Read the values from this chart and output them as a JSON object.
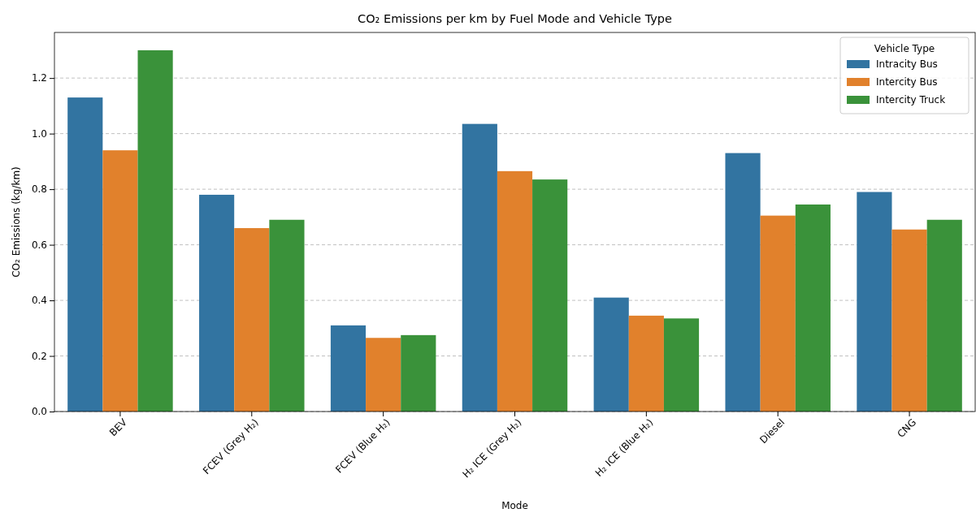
{
  "chart_data": {
    "type": "bar",
    "title": "CO₂ Emissions per km by Fuel Mode and Vehicle Type",
    "xlabel": "Mode",
    "ylabel": "CO₂ Emissions (kg/km)",
    "legend_title": "Vehicle Type",
    "categories": [
      "BEV",
      "FCEV (Grey H₂)",
      "FCEV (Blue H₂)",
      "H₂ ICE (Grey H₂)",
      "H₂ ICE (Blue H₂)",
      "Diesel",
      "CNG"
    ],
    "series": [
      {
        "name": "Intracity Bus",
        "color": "#3274a1",
        "values": [
          1.13,
          0.78,
          0.31,
          1.035,
          0.41,
          0.93,
          0.79
        ]
      },
      {
        "name": "Intercity Bus",
        "color": "#e1812c",
        "values": [
          0.94,
          0.66,
          0.265,
          0.865,
          0.345,
          0.705,
          0.655
        ]
      },
      {
        "name": "Intercity Truck",
        "color": "#3a923a",
        "values": [
          1.3,
          0.69,
          0.275,
          0.835,
          0.335,
          0.745,
          0.69
        ]
      }
    ],
    "ylim": [
      0,
      1.364
    ],
    "yticks": [
      {
        "value": 0,
        "label": "0.0"
      },
      {
        "value": 0.2,
        "label": "0.2"
      },
      {
        "value": 0.4,
        "label": "0.4"
      },
      {
        "value": 0.6,
        "label": "0.6"
      },
      {
        "value": 0.8,
        "label": "0.8"
      },
      {
        "value": 1,
        "label": "1.0"
      },
      {
        "value": 1.2,
        "label": "1.2"
      }
    ],
    "grid": "y",
    "legend": "top right"
  }
}
